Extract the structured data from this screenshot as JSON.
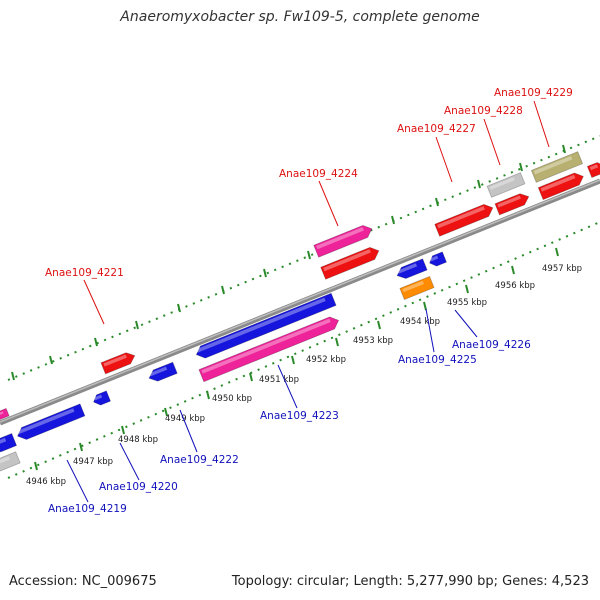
{
  "title": "Anaeromyxobacter sp. Fw109-5, complete genome",
  "footer": {
    "accession": "Accession: NC_009675",
    "summary": "Topology: circular; Length: 5,277,990 bp; Genes: 4,523"
  },
  "colors": {
    "backbone": "#8a8a8a",
    "tick": "#2a8a2a",
    "forward_label": "#dd1111",
    "reverse_label": "#1111bb",
    "red_gene": "#ee1111",
    "blue_gene": "#1515dd",
    "pink_gene": "#ee2299",
    "grey_gene": "#c4c4c4",
    "olive_gene": "#b8b070",
    "orange_gene": "#ff8c00"
  },
  "ticks": [
    "4946 kbp",
    "4947 kbp",
    "4948 kbp",
    "4949 kbp",
    "4950 kbp",
    "4951 kbp",
    "4952 kbp",
    "4953 kbp",
    "4954 kbp",
    "4955 kbp",
    "4956 kbp",
    "4957 kbp"
  ],
  "labels": {
    "forward": [
      "Anae109_4221",
      "Anae109_4224",
      "Anae109_4227",
      "Anae109_4228",
      "Anae109_4229"
    ],
    "reverse": [
      "Anae109_4219",
      "Anae109_4220",
      "Anae109_4222",
      "Anae109_4223",
      "Anae109_4225",
      "Anae109_4226"
    ]
  }
}
